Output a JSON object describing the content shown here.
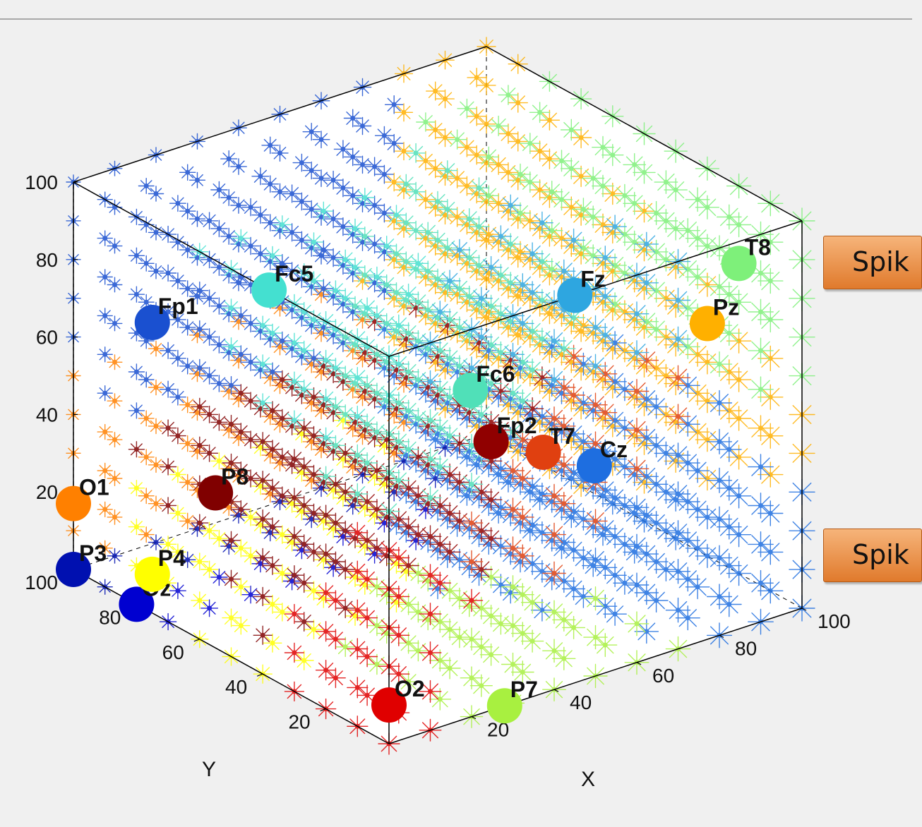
{
  "buttons": [
    {
      "label": "Spik"
    },
    {
      "label": "Spik"
    }
  ],
  "chart_data": {
    "type": "scatter",
    "title": "",
    "xlabel": "X",
    "ylabel": "Y",
    "zlabel": "",
    "xlim": [
      0,
      100
    ],
    "ylim": [
      0,
      100
    ],
    "zlim": [
      0,
      100
    ],
    "xticks": [
      20,
      40,
      60,
      80,
      100
    ],
    "yticks": [
      20,
      40,
      60,
      80,
      100
    ],
    "zticks": [
      20,
      40,
      60,
      80,
      100
    ],
    "box": true,
    "grid": false,
    "grid_markers": {
      "spacing": 10,
      "marker": "asterisk",
      "description": "Each grid point is colored by the nearest electrode"
    },
    "electrodes": [
      {
        "name": "Fc5",
        "x": 0,
        "y": 38,
        "z": 100,
        "color": "#44e0d0"
      },
      {
        "name": "Fz",
        "x": 45,
        "y": 0,
        "z": 100,
        "color": "#2ea6e0"
      },
      {
        "name": "Fp1",
        "x": 0,
        "y": 75,
        "z": 75,
        "color": "#1a50d0"
      },
      {
        "name": "Fc6",
        "x": 35,
        "y": 20,
        "z": 70,
        "color": "#50e0b8"
      },
      {
        "name": "T7",
        "x": 45,
        "y": 10,
        "z": 55,
        "color": "#e04010"
      },
      {
        "name": "Fp2",
        "x": 40,
        "y": 20,
        "z": 55,
        "color": "#900000"
      },
      {
        "name": "T8",
        "x": 100,
        "y": 20,
        "z": 80,
        "color": "#7ef07a"
      },
      {
        "name": "Pz",
        "x": 100,
        "y": 30,
        "z": 60,
        "color": "#ffb000"
      },
      {
        "name": "P8",
        "x": 0,
        "y": 55,
        "z": 40,
        "color": "#800000"
      },
      {
        "name": "Cz",
        "x": 65,
        "y": 20,
        "z": 40,
        "color": "#1e6ee0"
      },
      {
        "name": "O1",
        "x": 0,
        "y": 100,
        "z": 17,
        "color": "#ff8000"
      },
      {
        "name": "P4",
        "x": 0,
        "y": 75,
        "z": 10,
        "color": "#ffff00"
      },
      {
        "name": "P3",
        "x": 0,
        "y": 100,
        "z": 0,
        "color": "#0010b0"
      },
      {
        "name": "Oz",
        "x": 0,
        "y": 80,
        "z": 0,
        "color": "#0000d0"
      },
      {
        "name": "O2",
        "x": 0,
        "y": 0,
        "z": 10,
        "color": "#e00000"
      },
      {
        "name": "P7",
        "x": 28,
        "y": 0,
        "z": 0,
        "color": "#a8f040"
      }
    ]
  }
}
